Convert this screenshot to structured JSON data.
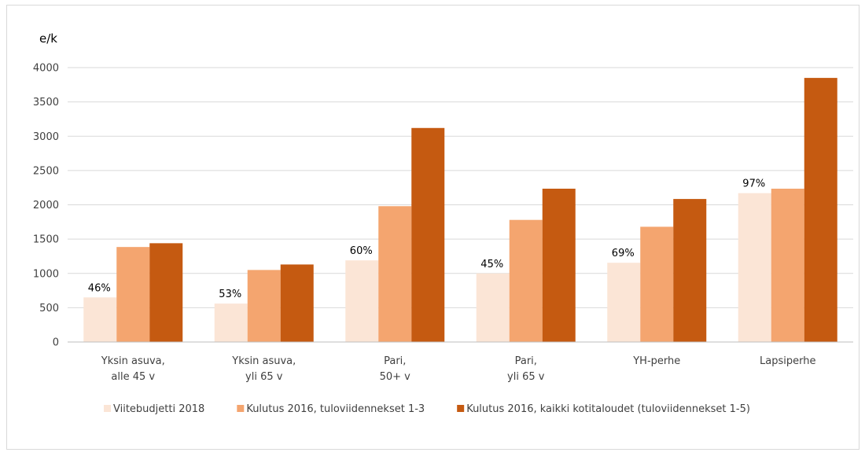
{
  "chart_data": {
    "type": "bar",
    "ylabel": "e/k",
    "ylim": [
      0,
      4000
    ],
    "yticks": [
      0,
      500,
      1000,
      1500,
      2000,
      2500,
      3000,
      3500,
      4000
    ],
    "grid": true,
    "legend_position": "bottom",
    "categories": [
      [
        "Yksin asuva,",
        "alle 45 v"
      ],
      [
        "Yksin asuva,",
        "yli 65 v"
      ],
      [
        "Pari,",
        "50+ v"
      ],
      [
        "Pari,",
        "yli 65 v"
      ],
      [
        "YH-perhe"
      ],
      [
        "Lapsiperhe"
      ]
    ],
    "series": [
      {
        "name": "Viitebudjetti 2018",
        "color": "#fbe5d6",
        "values": [
          650,
          560,
          1190,
          1000,
          1155,
          2170
        ],
        "labels": [
          "46%",
          "53%",
          "60%",
          "45%",
          "69%",
          "97%"
        ]
      },
      {
        "name": "Kulutus 2016, tuloviidennekset 1-3",
        "color": "#f4a56f",
        "values": [
          1385,
          1050,
          1980,
          1780,
          1680,
          2235
        ]
      },
      {
        "name": "Kulutus 2016, kaikki kotitaloudet (tuloviidennekset 1-5)",
        "color": "#c55a11",
        "values": [
          1440,
          1130,
          3120,
          2235,
          2085,
          3850
        ]
      }
    ]
  }
}
